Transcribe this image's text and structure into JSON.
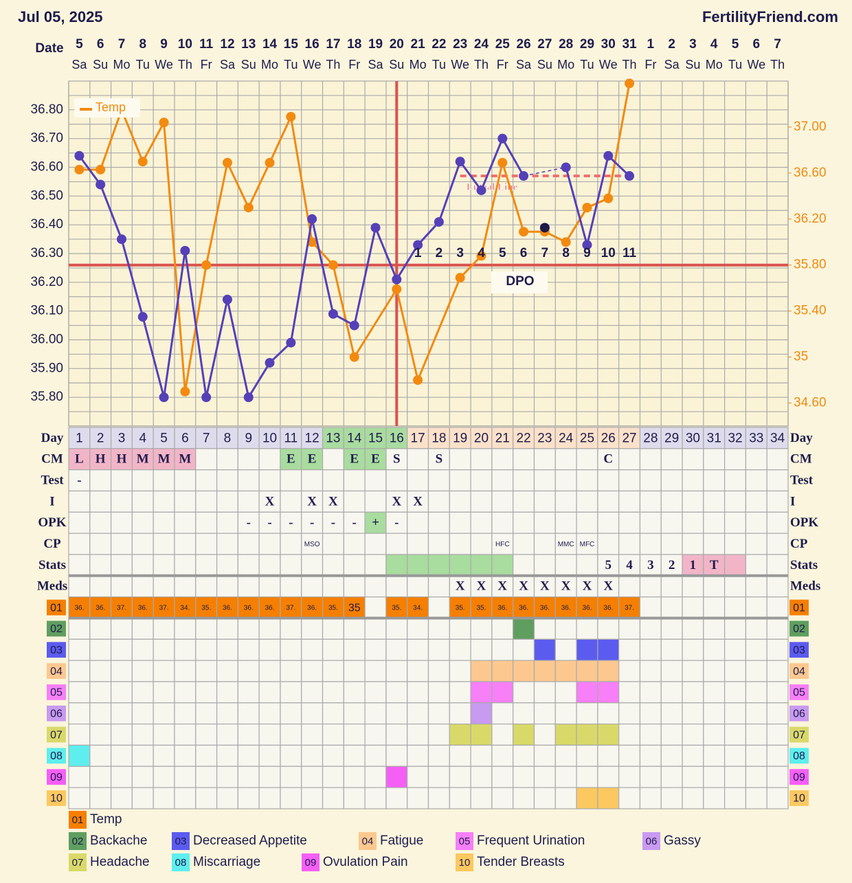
{
  "header": {
    "date": "Jul 05, 2025",
    "site": "FertilityFriend.com"
  },
  "dates": {
    "label": "Date",
    "days": [
      "5",
      "6",
      "7",
      "8",
      "9",
      "10",
      "11",
      "12",
      "13",
      "14",
      "15",
      "16",
      "17",
      "18",
      "19",
      "20",
      "21",
      "22",
      "23",
      "24",
      "25",
      "26",
      "27",
      "28",
      "29",
      "30",
      "31",
      "1",
      "2",
      "3",
      "4",
      "5",
      "6",
      "7"
    ],
    "weekdays": [
      "Sa",
      "Su",
      "Mo",
      "Tu",
      "We",
      "Th",
      "Fr",
      "Sa",
      "Su",
      "Mo",
      "Tu",
      "We",
      "Th",
      "Fr",
      "Sa",
      "Su",
      "Mo",
      "Tu",
      "We",
      "Th",
      "Fr",
      "Sa",
      "Su",
      "Mo",
      "Tu",
      "We",
      "Th",
      "Fr",
      "Sa",
      "Su",
      "Mo",
      "Tu",
      "We",
      "Th"
    ]
  },
  "chart_data": {
    "type": "line",
    "categories": [
      1,
      2,
      3,
      4,
      5,
      6,
      7,
      8,
      9,
      10,
      11,
      12,
      13,
      14,
      15,
      16,
      17,
      18,
      19,
      20,
      21,
      22,
      23,
      24,
      25,
      26,
      27,
      28,
      29,
      30,
      31,
      32,
      33,
      34
    ],
    "series": [
      {
        "name": "Temp",
        "color": "#f28a10",
        "axis": "y2",
        "gap_line": "solid",
        "values": [
          36.63,
          36.63,
          37.15,
          36.7,
          37.04,
          34.7,
          35.8,
          36.69,
          36.3,
          36.69,
          37.09,
          36.0,
          35.8,
          35.0,
          null,
          35.59,
          34.8,
          null,
          35.69,
          35.88,
          36.69,
          36.09,
          36.09,
          36.0,
          36.3,
          36.38,
          37.38,
          null,
          null,
          null,
          null,
          null,
          null,
          null
        ]
      },
      {
        "color": "#5540b8",
        "gap_line": "dashed",
        "values": [
          36.64,
          36.54,
          36.35,
          36.08,
          35.8,
          36.31,
          35.8,
          36.14,
          35.8,
          35.92,
          35.99,
          36.42,
          36.09,
          36.05,
          36.39,
          36.21,
          36.33,
          36.41,
          36.62,
          36.52,
          36.7,
          36.57,
          null,
          36.6,
          36.33,
          36.64,
          36.57,
          null,
          null,
          null,
          null,
          null,
          null,
          null
        ]
      },
      {
        "color": "#1e1a4a",
        "values": [
          null,
          null,
          null,
          null,
          null,
          null,
          null,
          null,
          null,
          null,
          null,
          null,
          null,
          null,
          null,
          null,
          null,
          null,
          null,
          null,
          null,
          null,
          36.39,
          null,
          null,
          null,
          null,
          null,
          null,
          null,
          null,
          null,
          null,
          null
        ]
      }
    ],
    "ylim": [
      35.7,
      36.9
    ],
    "yticks": [
      {
        "value": 35.8,
        "label": "35.80"
      },
      {
        "value": 35.9,
        "label": "35.90"
      },
      {
        "value": 36.0,
        "label": "36.00"
      },
      {
        "value": 36.1,
        "label": "36.10"
      },
      {
        "value": 36.2,
        "label": "36.20"
      },
      {
        "value": 36.3,
        "label": "36.30"
      },
      {
        "value": 36.4,
        "label": "36.40"
      },
      {
        "value": 36.5,
        "label": "36.50"
      },
      {
        "value": 36.6,
        "label": "36.60"
      },
      {
        "value": 36.7,
        "label": "36.70"
      },
      {
        "value": 36.8,
        "label": "36.80"
      }
    ],
    "y2lim": [
      34.4,
      37.4
    ],
    "y2ticks": [
      {
        "value": 34.6,
        "label": "34.60"
      },
      35,
      {
        "value": 35.4,
        "label": "35.40"
      },
      {
        "value": 35.8,
        "label": "35.80"
      },
      {
        "value": 36.2,
        "label": "36.20"
      },
      {
        "value": 36.6,
        "label": "36.60"
      },
      {
        "value": 37,
        "label": "37.00"
      }
    ],
    "grid": true,
    "coverline": 36.26,
    "ovulation_day": 16,
    "luteal_line": {
      "label": "Luteal Line",
      "value": 36.57
    },
    "dpo_label": "DPO",
    "dpo": [
      1,
      2,
      3,
      4,
      5,
      6,
      7,
      8,
      9,
      10,
      11
    ]
  },
  "table": {
    "day_label": "Day",
    "phases": [
      {
        "days": 12,
        "color": "#dedcec"
      },
      {
        "days": 4,
        "color": "#a9dc9f"
      },
      {
        "days": 11,
        "color": "#fbe1c9"
      },
      {
        "days": 7,
        "color": "#dedcec"
      }
    ],
    "rows": [
      {
        "label": "CM",
        "cells": [
          {
            "text": "L",
            "color": "#f2b5c8"
          },
          {
            "text": "H",
            "color": "#f2b5c8"
          },
          {
            "text": "H",
            "color": "#f2b5c8"
          },
          {
            "text": "M",
            "color": "#f2b5c8"
          },
          {
            "text": "M",
            "color": "#f2b5c8"
          },
          {
            "text": "M",
            "color": "#f2b5c8"
          },
          null,
          null,
          null,
          null,
          {
            "text": "E",
            "color": "#a9dc9f"
          },
          {
            "text": "E",
            "color": "#a9dc9f"
          },
          null,
          {
            "text": "E",
            "color": "#a9dc9f"
          },
          {
            "text": "E",
            "color": "#a9dc9f"
          },
          {
            "text": "S"
          },
          null,
          {
            "text": "S"
          },
          null,
          null,
          null,
          null,
          null,
          null,
          null,
          {
            "text": "C"
          },
          null,
          null,
          null,
          null,
          null,
          null,
          null,
          null
        ]
      },
      {
        "label": "Test",
        "cells": [
          {
            "text": "-"
          },
          null,
          null,
          null,
          null,
          null,
          null,
          null,
          null,
          null,
          null,
          null,
          null,
          null,
          null,
          null,
          null,
          null,
          null,
          null,
          null,
          null,
          null,
          null,
          null,
          null,
          null,
          null,
          null,
          null,
          null,
          null,
          null,
          null
        ]
      },
      {
        "label": "I",
        "cells": [
          null,
          null,
          null,
          null,
          null,
          null,
          null,
          null,
          null,
          {
            "text": "X"
          },
          null,
          {
            "text": "X"
          },
          {
            "text": "X"
          },
          null,
          null,
          {
            "text": "X"
          },
          {
            "text": "X"
          },
          null,
          null,
          null,
          null,
          null,
          null,
          null,
          null,
          null,
          null,
          null,
          null,
          null,
          null,
          null,
          null,
          null
        ]
      },
      {
        "label": "OPK",
        "cells": [
          null,
          null,
          null,
          null,
          null,
          null,
          null,
          null,
          {
            "text": "-"
          },
          {
            "text": "-"
          },
          {
            "text": "-"
          },
          {
            "text": "-"
          },
          {
            "text": "-"
          },
          {
            "text": "-"
          },
          {
            "text": "+",
            "color": "#a9dc9f"
          },
          {
            "text": "-"
          },
          null,
          null,
          null,
          null,
          null,
          null,
          null,
          null,
          null,
          null,
          null,
          null,
          null,
          null,
          null,
          null,
          null,
          null
        ]
      },
      {
        "label": "CP",
        "cells": [
          null,
          null,
          null,
          null,
          null,
          null,
          null,
          null,
          null,
          null,
          null,
          {
            "text": "MSO"
          },
          null,
          null,
          null,
          null,
          null,
          null,
          null,
          null,
          {
            "text": "HFC"
          },
          null,
          null,
          {
            "text": "MMC"
          },
          {
            "text": "MFC"
          },
          null,
          null,
          null,
          null,
          null,
          null,
          null,
          null,
          null
        ]
      },
      {
        "label": "Stats",
        "cells": [
          null,
          null,
          null,
          null,
          null,
          null,
          null,
          null,
          null,
          null,
          null,
          null,
          null,
          null,
          null,
          {
            "color": "#a9dc9f"
          },
          {
            "color": "#a9dc9f"
          },
          {
            "color": "#a9dc9f"
          },
          {
            "color": "#a9dc9f"
          },
          {
            "color": "#a9dc9f"
          },
          {
            "color": "#a9dc9f"
          },
          null,
          null,
          null,
          null,
          {
            "text": "5"
          },
          {
            "text": "4"
          },
          {
            "text": "3"
          },
          {
            "text": "2"
          },
          {
            "text": "1",
            "color": "#f2b5c8"
          },
          {
            "text": "T",
            "color": "#f2b5c8"
          },
          {
            "color": "#f2b5c8"
          },
          null,
          null
        ]
      },
      {
        "label": "Meds",
        "cells": [
          null,
          null,
          null,
          null,
          null,
          null,
          null,
          null,
          null,
          null,
          null,
          null,
          null,
          null,
          null,
          null,
          null,
          null,
          {
            "text": "X"
          },
          {
            "text": "X"
          },
          {
            "text": "X"
          },
          {
            "text": "X"
          },
          {
            "text": "X"
          },
          {
            "text": "X"
          },
          {
            "text": "X"
          },
          {
            "text": "X"
          },
          null,
          null,
          null,
          null,
          null,
          null,
          null,
          null
        ]
      }
    ]
  },
  "symptoms": [
    {
      "code": "01",
      "name": "Temp",
      "color": "#f57f00",
      "days": [
        1,
        2,
        3,
        4,
        5,
        6,
        7,
        8,
        9,
        10,
        11,
        12,
        13,
        14,
        16,
        17,
        19,
        20,
        21,
        22,
        23,
        24,
        25,
        26,
        27
      ],
      "texts": [
        "36.",
        "36.",
        "37.",
        "36.",
        "37.",
        "34.",
        "35.",
        "36.",
        "36.",
        "36.",
        "37.",
        "36.",
        "35.",
        "35",
        "35.",
        "34.",
        "35.",
        "35.",
        "36.",
        "36.",
        "36.",
        "36.",
        "36.",
        "36.",
        "37."
      ]
    },
    {
      "code": "02",
      "name": "Backache",
      "color": "#5f9e5f",
      "days": [
        22
      ]
    },
    {
      "code": "03",
      "name": "Decreased Appetite",
      "color": "#5b5bef",
      "days": [
        23,
        25,
        26
      ]
    },
    {
      "code": "04",
      "name": "Fatigue",
      "color": "#fcc890",
      "days": [
        20,
        21,
        22,
        23,
        24,
        25,
        26
      ]
    },
    {
      "code": "05",
      "name": "Frequent Urination",
      "color": "#f77ff7",
      "days": [
        20,
        21,
        25,
        26
      ]
    },
    {
      "code": "06",
      "name": "Gassy",
      "color": "#c89af0",
      "days": [
        20
      ]
    },
    {
      "code": "07",
      "name": "Headache",
      "color": "#d9d96a",
      "days": [
        19,
        20,
        22,
        24,
        25,
        26
      ]
    },
    {
      "code": "08",
      "name": "Miscarriage",
      "color": "#5eeeee",
      "days": [
        1
      ]
    },
    {
      "code": "09",
      "name": "Ovulation Pain",
      "color": "#f55ff5",
      "days": [
        16
      ]
    },
    {
      "code": "10",
      "name": "Tender Breasts",
      "color": "#fcc860",
      "days": [
        25,
        26
      ]
    }
  ]
}
